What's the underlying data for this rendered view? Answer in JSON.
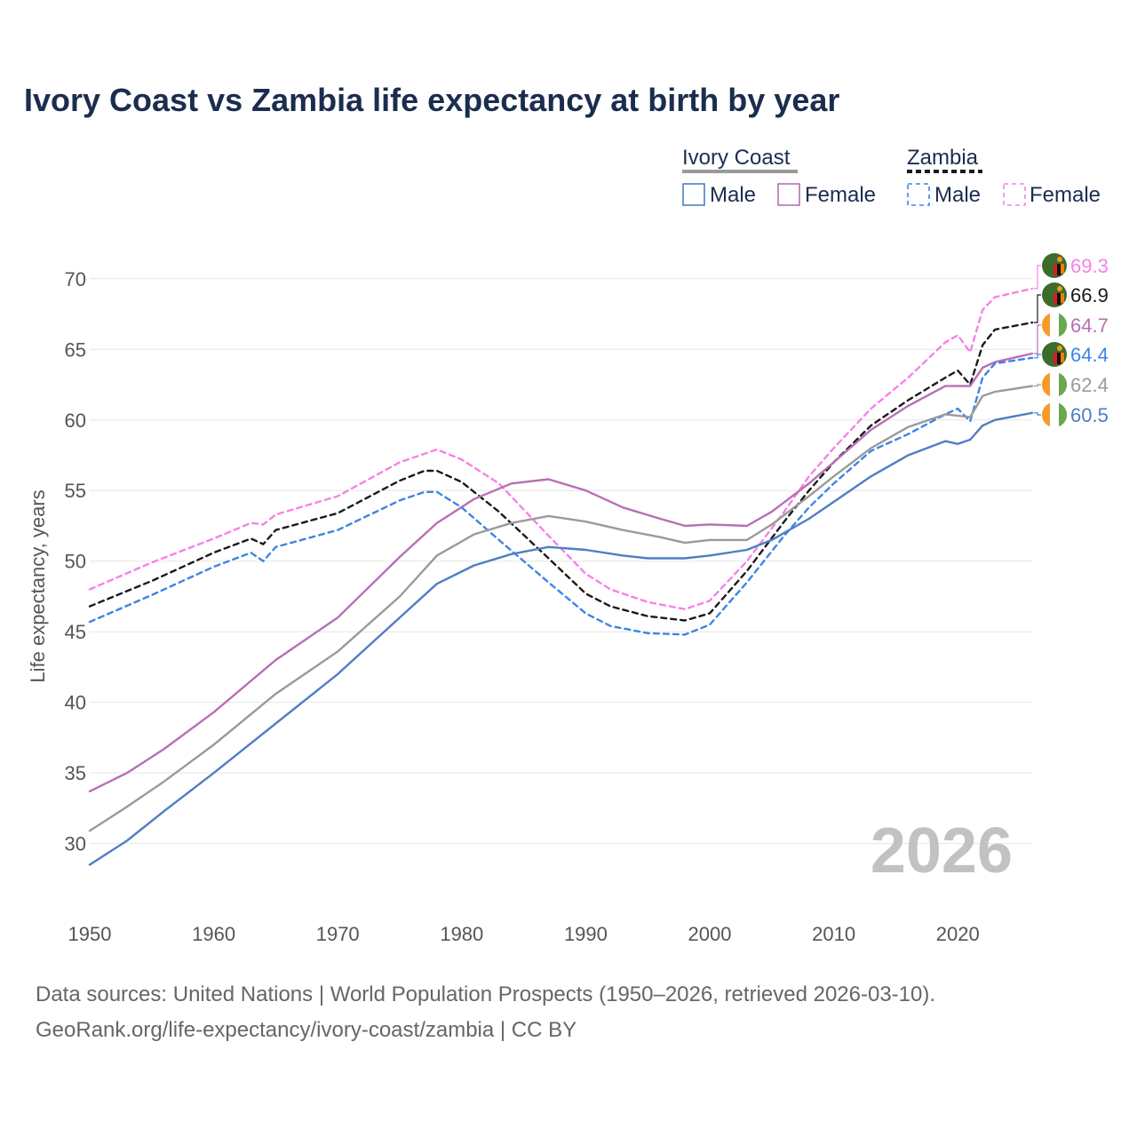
{
  "chart_data": {
    "type": "line",
    "title": "Ivory Coast vs Zambia life expectancy at birth by year",
    "ylabel": "Life expectancy, years",
    "xlabel": "",
    "xlim": [
      1950,
      2026
    ],
    "ylim": [
      25.7,
      72
    ],
    "x_ticks": [
      1950,
      1960,
      1970,
      1980,
      1990,
      2000,
      2010,
      2020
    ],
    "y_ticks": [
      30,
      35,
      40,
      45,
      50,
      55,
      60,
      65,
      70
    ],
    "year_watermark": "2026",
    "legend": {
      "groups": [
        {
          "name": "Ivory Coast",
          "entries": [
            "Male",
            "Female"
          ]
        },
        {
          "name": "Zambia",
          "entries": [
            "Male",
            "Female"
          ]
        }
      ]
    },
    "series": [
      {
        "name": "Zambia Female",
        "country": "Zambia",
        "sex": "Female",
        "color": "#f582e6",
        "dashed": true,
        "end_label": "69.3",
        "points": [
          [
            1950,
            48.0
          ],
          [
            1955,
            49.9
          ],
          [
            1960,
            51.6
          ],
          [
            1963,
            52.7
          ],
          [
            1964,
            52.6
          ],
          [
            1965,
            53.3
          ],
          [
            1970,
            54.6
          ],
          [
            1975,
            57.0
          ],
          [
            1978,
            57.9
          ],
          [
            1980,
            57.2
          ],
          [
            1983,
            55.5
          ],
          [
            1987,
            51.8
          ],
          [
            1990,
            49.1
          ],
          [
            1992,
            48.0
          ],
          [
            1995,
            47.1
          ],
          [
            1998,
            46.6
          ],
          [
            2000,
            47.2
          ],
          [
            2003,
            50.0
          ],
          [
            2006,
            53.5
          ],
          [
            2008,
            56.0
          ],
          [
            2010,
            58.0
          ],
          [
            2013,
            60.8
          ],
          [
            2016,
            63.0
          ],
          [
            2019,
            65.5
          ],
          [
            2020,
            66.0
          ],
          [
            2021,
            64.8
          ],
          [
            2022,
            67.8
          ],
          [
            2023,
            68.7
          ],
          [
            2026,
            69.3
          ]
        ]
      },
      {
        "name": "Zambia Both",
        "country": "Zambia",
        "sex": "Both",
        "color": "#1a1a1a",
        "dashed": true,
        "end_label": "66.9",
        "points": [
          [
            1950,
            46.8
          ],
          [
            1955,
            48.6
          ],
          [
            1960,
            50.6
          ],
          [
            1963,
            51.6
          ],
          [
            1964,
            51.2
          ],
          [
            1965,
            52.2
          ],
          [
            1970,
            53.4
          ],
          [
            1975,
            55.7
          ],
          [
            1977,
            56.4
          ],
          [
            1978,
            56.4
          ],
          [
            1980,
            55.6
          ],
          [
            1983,
            53.5
          ],
          [
            1987,
            50.2
          ],
          [
            1990,
            47.7
          ],
          [
            1992,
            46.8
          ],
          [
            1995,
            46.1
          ],
          [
            1998,
            45.8
          ],
          [
            2000,
            46.3
          ],
          [
            2003,
            49.3
          ],
          [
            2006,
            52.8
          ],
          [
            2008,
            55.0
          ],
          [
            2010,
            57.0
          ],
          [
            2013,
            59.6
          ],
          [
            2016,
            61.4
          ],
          [
            2019,
            63.0
          ],
          [
            2020,
            63.5
          ],
          [
            2021,
            62.5
          ],
          [
            2022,
            65.3
          ],
          [
            2023,
            66.4
          ],
          [
            2026,
            66.9
          ]
        ]
      },
      {
        "name": "Ivory Coast Female",
        "country": "Ivory Coast",
        "sex": "Female",
        "color": "#b86fb2",
        "dashed": false,
        "end_label": "64.7",
        "points": [
          [
            1950,
            33.7
          ],
          [
            1953,
            35.0
          ],
          [
            1956,
            36.7
          ],
          [
            1960,
            39.3
          ],
          [
            1965,
            43.0
          ],
          [
            1970,
            46.0
          ],
          [
            1975,
            50.3
          ],
          [
            1978,
            52.7
          ],
          [
            1981,
            54.4
          ],
          [
            1984,
            55.5
          ],
          [
            1987,
            55.8
          ],
          [
            1990,
            55.0
          ],
          [
            1993,
            53.8
          ],
          [
            1996,
            53.0
          ],
          [
            1998,
            52.5
          ],
          [
            2000,
            52.6
          ],
          [
            2003,
            52.5
          ],
          [
            2005,
            53.5
          ],
          [
            2008,
            55.5
          ],
          [
            2010,
            57.0
          ],
          [
            2013,
            59.3
          ],
          [
            2016,
            61.0
          ],
          [
            2019,
            62.4
          ],
          [
            2021,
            62.4
          ],
          [
            2022,
            63.7
          ],
          [
            2023,
            64.1
          ],
          [
            2026,
            64.7
          ]
        ]
      },
      {
        "name": "Zambia Male",
        "country": "Zambia",
        "sex": "Male",
        "color": "#3d85e6",
        "dashed": true,
        "end_label": "64.4",
        "points": [
          [
            1950,
            45.7
          ],
          [
            1955,
            47.6
          ],
          [
            1960,
            49.6
          ],
          [
            1963,
            50.6
          ],
          [
            1964,
            50.0
          ],
          [
            1965,
            51.0
          ],
          [
            1970,
            52.2
          ],
          [
            1975,
            54.3
          ],
          [
            1977,
            54.9
          ],
          [
            1978,
            54.9
          ],
          [
            1980,
            53.8
          ],
          [
            1983,
            51.5
          ],
          [
            1987,
            48.5
          ],
          [
            1990,
            46.3
          ],
          [
            1992,
            45.4
          ],
          [
            1995,
            44.9
          ],
          [
            1998,
            44.8
          ],
          [
            2000,
            45.5
          ],
          [
            2003,
            48.5
          ],
          [
            2006,
            51.8
          ],
          [
            2008,
            53.8
          ],
          [
            2010,
            55.5
          ],
          [
            2013,
            57.8
          ],
          [
            2016,
            59.0
          ],
          [
            2019,
            60.4
          ],
          [
            2020,
            60.8
          ],
          [
            2021,
            59.9
          ],
          [
            2022,
            63.0
          ],
          [
            2023,
            64.0
          ],
          [
            2026,
            64.4
          ]
        ]
      },
      {
        "name": "Ivory Coast Both",
        "country": "Ivory Coast",
        "sex": "Both",
        "color": "#9a9a9a",
        "dashed": false,
        "end_label": "62.4",
        "points": [
          [
            1950,
            30.9
          ],
          [
            1953,
            32.6
          ],
          [
            1956,
            34.4
          ],
          [
            1960,
            37.0
          ],
          [
            1965,
            40.6
          ],
          [
            1970,
            43.6
          ],
          [
            1975,
            47.5
          ],
          [
            1978,
            50.4
          ],
          [
            1981,
            51.9
          ],
          [
            1984,
            52.7
          ],
          [
            1987,
            53.2
          ],
          [
            1990,
            52.8
          ],
          [
            1993,
            52.2
          ],
          [
            1996,
            51.7
          ],
          [
            1998,
            51.3
          ],
          [
            2000,
            51.5
          ],
          [
            2003,
            51.5
          ],
          [
            2005,
            52.6
          ],
          [
            2008,
            54.6
          ],
          [
            2010,
            56.0
          ],
          [
            2013,
            58.0
          ],
          [
            2016,
            59.5
          ],
          [
            2019,
            60.4
          ],
          [
            2021,
            60.2
          ],
          [
            2022,
            61.7
          ],
          [
            2023,
            62.0
          ],
          [
            2026,
            62.4
          ]
        ]
      },
      {
        "name": "Ivory Coast Male",
        "country": "Ivory Coast",
        "sex": "Male",
        "color": "#4f7ec4",
        "dashed": false,
        "end_label": "60.5",
        "points": [
          [
            1950,
            28.5
          ],
          [
            1953,
            30.2
          ],
          [
            1956,
            32.3
          ],
          [
            1960,
            35.0
          ],
          [
            1965,
            38.5
          ],
          [
            1970,
            42.0
          ],
          [
            1975,
            46.0
          ],
          [
            1978,
            48.4
          ],
          [
            1981,
            49.7
          ],
          [
            1984,
            50.5
          ],
          [
            1987,
            51.0
          ],
          [
            1990,
            50.8
          ],
          [
            1993,
            50.4
          ],
          [
            1995,
            50.2
          ],
          [
            1998,
            50.2
          ],
          [
            2000,
            50.4
          ],
          [
            2003,
            50.8
          ],
          [
            2005,
            51.5
          ],
          [
            2008,
            53.0
          ],
          [
            2010,
            54.2
          ],
          [
            2013,
            56.0
          ],
          [
            2016,
            57.5
          ],
          [
            2019,
            58.5
          ],
          [
            2020,
            58.3
          ],
          [
            2021,
            58.6
          ],
          [
            2022,
            59.6
          ],
          [
            2023,
            60.0
          ],
          [
            2026,
            60.5
          ]
        ]
      }
    ]
  },
  "footer": {
    "line1": "Data sources: United Nations | World Population Prospects (1950–2026, retrieved 2026-03-10).",
    "line2": "GeoRank.org/life-expectancy/ivory-coast/zambia | CC BY"
  }
}
